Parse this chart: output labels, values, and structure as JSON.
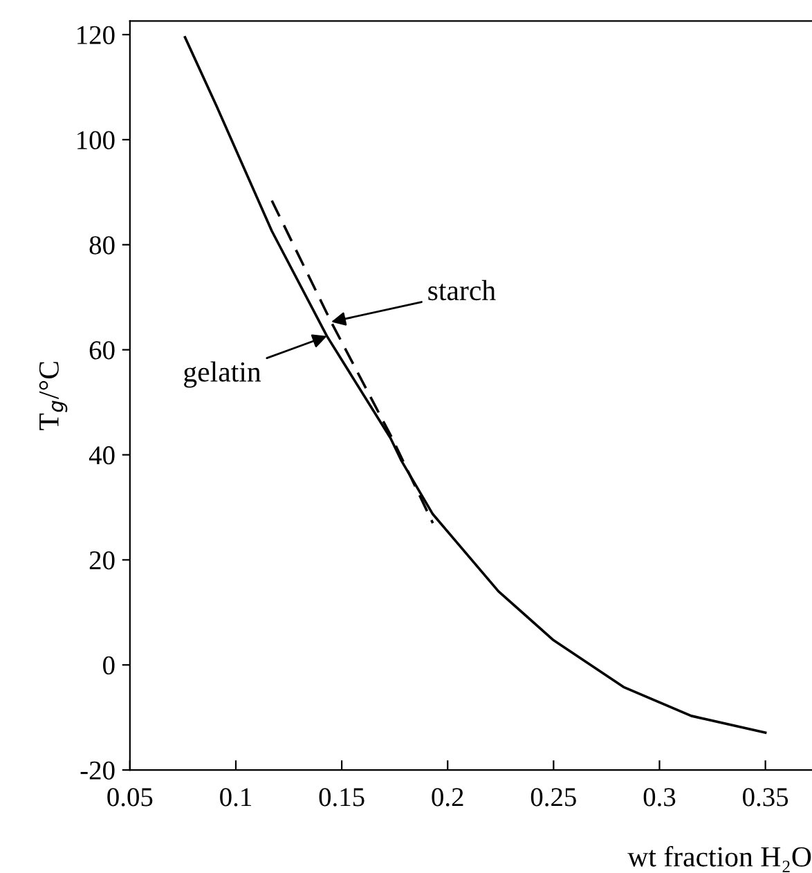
{
  "chart_data": {
    "type": "line",
    "xlabel": "wt fraction H₂O",
    "ylabel": "T$_{g}$/°C",
    "xlim": [
      0.05,
      0.372
    ],
    "ylim": [
      -20,
      122.6
    ],
    "xticks": [
      0.05,
      0.1,
      0.15,
      0.2,
      0.25,
      0.3,
      0.35
    ],
    "yticks": [
      -20,
      0,
      20,
      40,
      60,
      80,
      100,
      120
    ],
    "grid": false,
    "marker": "none",
    "series": [
      {
        "color": "#000000",
        "line_style": "solid",
        "x": [
          0.076,
          0.091,
          0.117,
          0.143,
          0.173,
          0.178,
          0.193,
          0.224,
          0.25,
          0.283,
          0.315,
          0.35
        ],
        "values": [
          119.5,
          106.3,
          82.6,
          62.6,
          43.2,
          39,
          28.7,
          14,
          4.7,
          -4.2,
          -9.7,
          -12.9
        ]
      },
      {
        "color": "#000000",
        "line_style": "dashed",
        "x": [
          0.117,
          0.145,
          0.174,
          0.193
        ],
        "values": [
          88.4,
          65.3,
          43,
          27
        ]
      }
    ],
    "annotations": [
      {
        "text": "starch",
        "x": 0.145,
        "y": 65.3
      },
      {
        "text": "gelatin",
        "x": 0.143,
        "y": 62.6
      }
    ]
  }
}
